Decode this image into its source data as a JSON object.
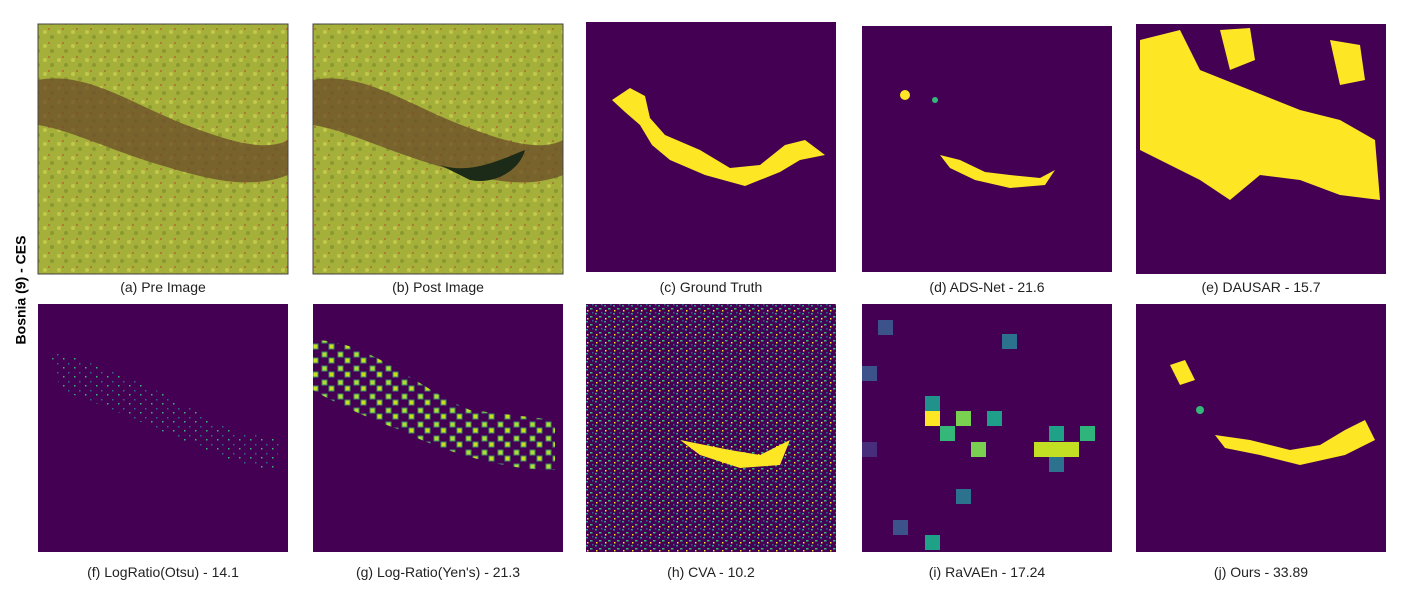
{
  "row_label": "Bosnia (9) - CES",
  "panels": [
    {
      "caption": "(a) Pre Image"
    },
    {
      "caption": "(b) Post Image"
    },
    {
      "caption": "(c) Ground Truth"
    },
    {
      "caption": "(d) ADS-Net - 21.6"
    },
    {
      "caption": "(e) DAUSAR - 15.7"
    },
    {
      "caption": "(f) LogRatio(Otsu) - 14.1"
    },
    {
      "caption": "(g) Log-Ratio(Yen's) - 21.3"
    },
    {
      "caption": "(h) CVA - 10.2"
    },
    {
      "caption": "(i) RaVAEn - 17.24"
    },
    {
      "caption": "(j) Ours - 33.89"
    }
  ]
}
